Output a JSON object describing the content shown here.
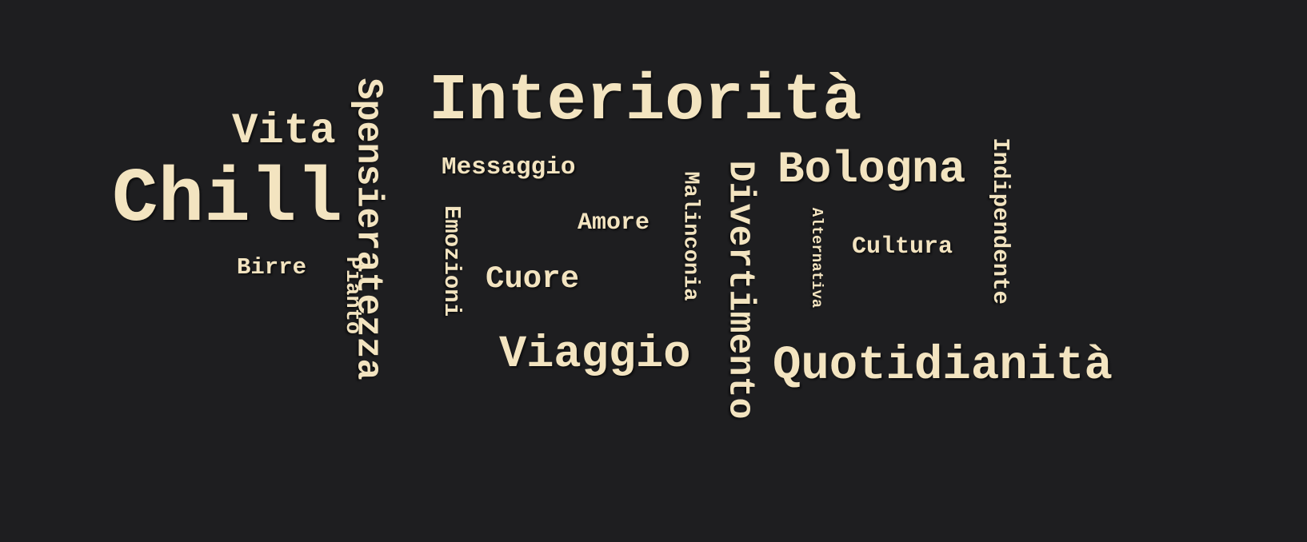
{
  "colors": {
    "background": "#1e1e20",
    "text": "#f3e4c0"
  },
  "words": [
    {
      "text": "Interiorità"
    },
    {
      "text": "Chill"
    },
    {
      "text": "Vita"
    },
    {
      "text": "Spensieratezza"
    },
    {
      "text": "Messaggio"
    },
    {
      "text": "Emozioni"
    },
    {
      "text": "Amore"
    },
    {
      "text": "Cuore"
    },
    {
      "text": "Birre"
    },
    {
      "text": "Pianto"
    },
    {
      "text": "Viaggio"
    },
    {
      "text": "Malinconia"
    },
    {
      "text": "Divertimento"
    },
    {
      "text": "Bologna"
    },
    {
      "text": "Alternativa"
    },
    {
      "text": "Cultura"
    },
    {
      "text": "Indipendente"
    },
    {
      "text": "Quotidianità"
    }
  ]
}
